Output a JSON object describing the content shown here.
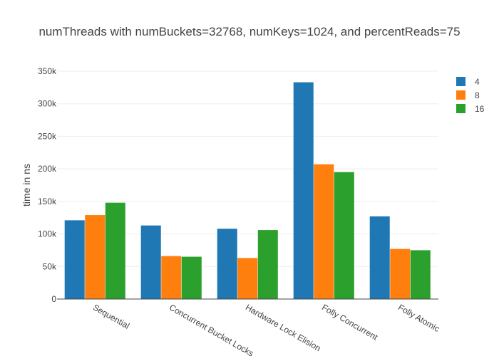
{
  "chart_data": {
    "type": "bar",
    "title": "numThreads with numBuckets=32768, numKeys=1024, and percentReads=75",
    "xlabel": "",
    "ylabel": "time in ns",
    "categories": [
      "Sequential",
      "Concurrent Bucket Locks",
      "Hardware Lock Elision",
      "Folly Concurrent",
      "Folly Atomic"
    ],
    "ylim": [
      0,
      350000
    ],
    "yticks": [
      0,
      50000,
      100000,
      150000,
      200000,
      250000,
      300000,
      350000
    ],
    "ytick_labels": [
      "0",
      "50k",
      "100k",
      "150k",
      "200k",
      "250k",
      "300k",
      "350k"
    ],
    "grid": true,
    "legend_position": "top-right",
    "series": [
      {
        "name": "4",
        "color": "#1f77b4",
        "values": [
          121000,
          113000,
          108000,
          333000,
          127000
        ]
      },
      {
        "name": "8",
        "color": "#ff7f0e",
        "values": [
          129000,
          66000,
          63000,
          207000,
          77000
        ]
      },
      {
        "name": "16",
        "color": "#2ca02c",
        "values": [
          148000,
          65000,
          106000,
          195000,
          75000
        ]
      }
    ]
  }
}
